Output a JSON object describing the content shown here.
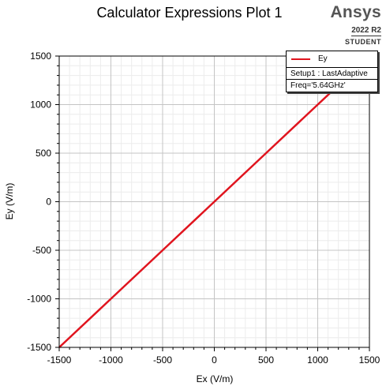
{
  "branding": {
    "name": "Ansys",
    "version": "2022 R2",
    "license": "STUDENT"
  },
  "chart_data": {
    "type": "line",
    "title": "Calculator Expressions Plot 1",
    "xlabel": "Ex (V/m)",
    "ylabel": "Ey (V/m)",
    "xlim": [
      -1500,
      1500
    ],
    "ylim": [
      -1500,
      1500
    ],
    "xticks": [
      -1500,
      -1000,
      -500,
      0,
      500,
      1000,
      1500
    ],
    "yticks": [
      -1500,
      -1000,
      -500,
      0,
      500,
      1000,
      1500
    ],
    "grid": true,
    "legend_position": "top-right",
    "legend": {
      "series": "Ey",
      "setup": "Setup1 : LastAdaptive",
      "freq": "Freq='5.64GHz'"
    },
    "series": [
      {
        "name": "Ey",
        "color": "#e0141e",
        "x": [
          -1500,
          -1000,
          -500,
          0,
          500,
          1000,
          1180
        ],
        "y": [
          -1500,
          -1000,
          -500,
          0,
          500,
          1000,
          1180
        ]
      }
    ]
  }
}
